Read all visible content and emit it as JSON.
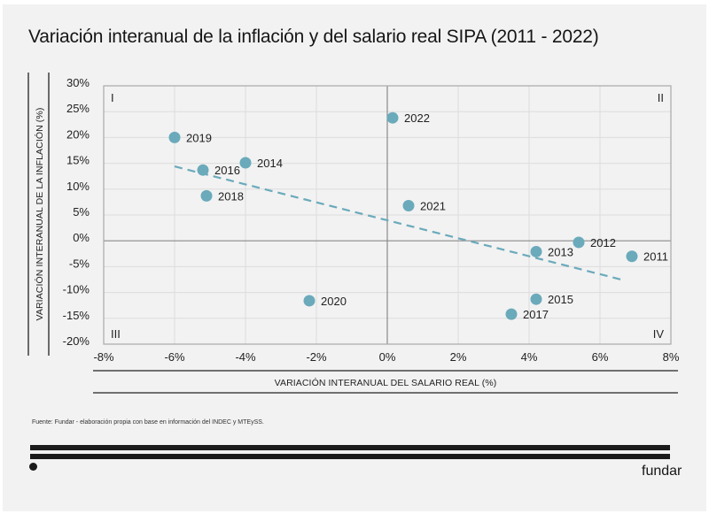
{
  "source_note": "Fuente: Fundar - elaboración propia con base en información del INDEC y MTEySS.",
  "brand": "fundar",
  "chart_data": {
    "type": "scatter",
    "title": "Variación interanual de la inflación y del salario real SIPA (2011 - 2022)",
    "xlabel": "VARIACIÓN INTERANUAL DEL SALARIO REAL (%)",
    "ylabel": "VARIACIÓN INTERANUAL DE LA INFLACIÓN (%)",
    "xlim": [
      -8,
      8
    ],
    "ylim": [
      -20,
      30
    ],
    "xticks": [
      -8,
      -6,
      -4,
      -2,
      0,
      2,
      4,
      6,
      8
    ],
    "yticks": [
      30,
      25,
      20,
      15,
      10,
      5,
      0,
      -5,
      -10,
      -15,
      -20
    ],
    "xtick_labels": [
      "-8%",
      "-6%",
      "-4%",
      "-2%",
      "0%",
      "2%",
      "4%",
      "6%",
      "8%"
    ],
    "ytick_labels": [
      "30%",
      "25%",
      "20%",
      "15%",
      "10%",
      "5%",
      "0%",
      "-5%",
      "-10%",
      "-15%",
      "-20%"
    ],
    "grid": true,
    "quadrant_labels": {
      "top_left": "I",
      "top_right": "II",
      "bottom_left": "III",
      "bottom_right": "IV"
    },
    "point_color": "#6aaabb",
    "trendline_color": "#6aaabb",
    "points": [
      {
        "label": "2011",
        "x": 6.9,
        "y": -3.0
      },
      {
        "label": "2012",
        "x": 5.4,
        "y": -0.3
      },
      {
        "label": "2013",
        "x": 4.2,
        "y": -2.1
      },
      {
        "label": "2014",
        "x": -4.0,
        "y": 15.1
      },
      {
        "label": "2015",
        "x": 4.2,
        "y": -11.3
      },
      {
        "label": "2016",
        "x": -5.2,
        "y": 13.7
      },
      {
        "label": "2017",
        "x": 3.5,
        "y": -14.2
      },
      {
        "label": "2018",
        "x": -5.1,
        "y": 8.7
      },
      {
        "label": "2019",
        "x": -6.0,
        "y": 20.0
      },
      {
        "label": "2020",
        "x": -2.2,
        "y": -11.6
      },
      {
        "label": "2021",
        "x": 0.6,
        "y": 6.8
      },
      {
        "label": "2022",
        "x": 0.15,
        "y": 23.8
      }
    ],
    "trendline": {
      "style": "dashed",
      "x_start": -6.0,
      "y_start": 14.4,
      "x_end": 6.6,
      "y_end": -7.5
    }
  }
}
